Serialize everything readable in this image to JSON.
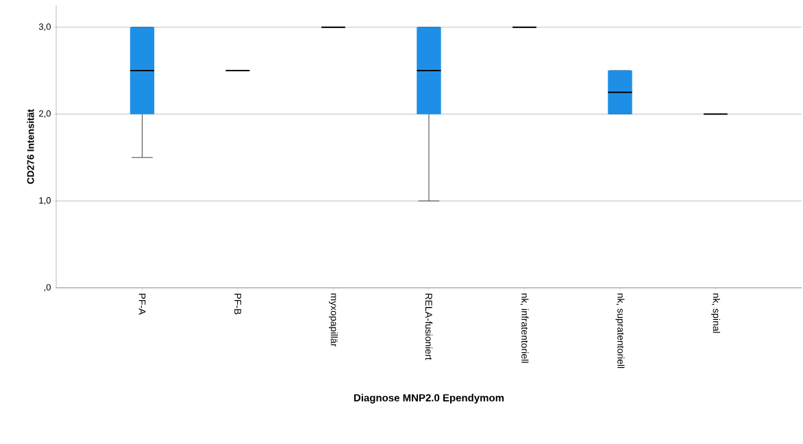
{
  "chart_data": {
    "type": "box",
    "xlabel": "Diagnose MNP2.0 Ependymom",
    "ylabel": "CD276 Intensität",
    "categories": [
      "PF-A",
      "PF-B",
      "myxopapillär",
      "RELA-fusioniert",
      "nk, infratentoriell",
      "nk, supratentoriell",
      "nk, spinal"
    ],
    "series": [
      {
        "color": "#1e8fe6",
        "boxes": [
          {
            "low": 1.5,
            "q1": 2,
            "median": 2.5,
            "q3": 3,
            "high": 3
          },
          {
            "low": 2.5,
            "q1": 2.5,
            "median": 2.5,
            "q3": 2.5,
            "high": 2.5
          },
          {
            "low": 3,
            "q1": 3,
            "median": 3,
            "q3": 3,
            "high": 3
          },
          {
            "low": 1,
            "q1": 2,
            "median": 2.5,
            "q3": 3,
            "high": 3
          },
          {
            "low": 3,
            "q1": 3,
            "median": 3,
            "q3": 3,
            "high": 3
          },
          {
            "low": 2,
            "q1": 2,
            "median": 2.25,
            "q3": 2.5,
            "high": 2.5
          },
          {
            "low": 2,
            "q1": 2,
            "median": 2,
            "q3": 2,
            "high": 2
          }
        ]
      }
    ],
    "ylim": [
      0,
      3.25
    ],
    "yticks": [
      {
        "value": 0,
        "label": ",0"
      },
      {
        "value": 1,
        "label": "1,0"
      },
      {
        "value": 2,
        "label": "2,0"
      },
      {
        "value": 3,
        "label": "3,0"
      }
    ],
    "grid": "y"
  }
}
